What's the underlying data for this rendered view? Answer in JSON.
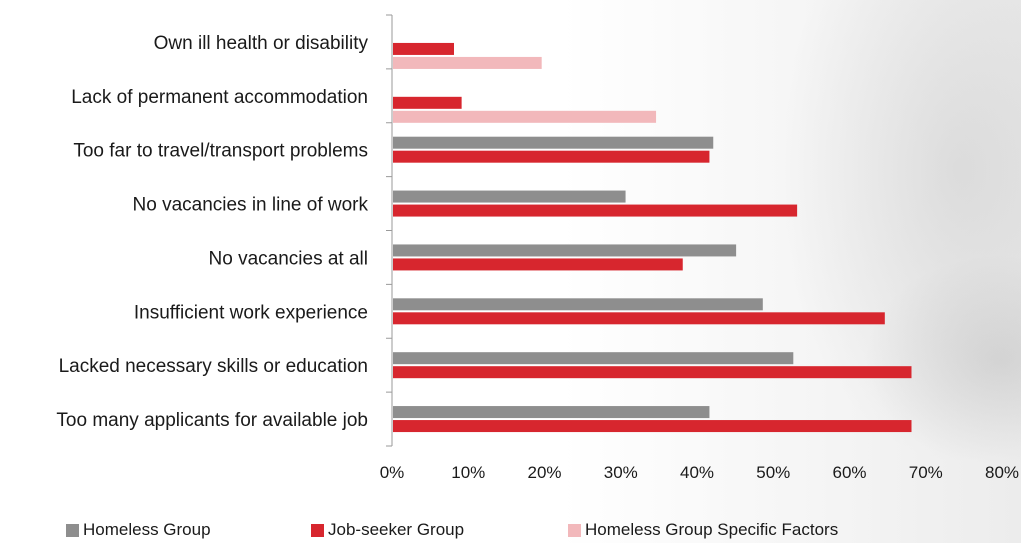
{
  "chart_data": {
    "type": "bar",
    "orientation": "horizontal",
    "categories": [
      "Own ill health or disability",
      "Lack of permanent accommodation",
      "Too far to travel/transport problems",
      "No vacancies in line of work",
      "No vacancies at all",
      "Insufficient work experience",
      "Lacked necessary skills or education",
      "Too many applicants for available job"
    ],
    "series": [
      {
        "name": "Homeless Group",
        "color": "#8e8e8e",
        "values": [
          null,
          null,
          42,
          30.5,
          45,
          48.5,
          52.5,
          41.5
        ]
      },
      {
        "name": "Job-seeker Group",
        "color": "#d7262e",
        "values": [
          8,
          9,
          41.5,
          53,
          38,
          64.5,
          68,
          68
        ]
      },
      {
        "name": "Homeless Group Specific Factors",
        "color": "#f2b8bb",
        "values": [
          19.5,
          34.5,
          null,
          null,
          null,
          null,
          null,
          null
        ]
      }
    ],
    "xlim": [
      0,
      80
    ],
    "ticks": [
      "0%",
      "10%",
      "20%",
      "30%",
      "40%",
      "50%",
      "60%",
      "70%",
      "80%"
    ],
    "title": "",
    "xlabel": "",
    "ylabel": "",
    "legend_position": "bottom",
    "grid": false
  },
  "legend": [
    {
      "label": "Homeless Group",
      "color": "#8e8e8e"
    },
    {
      "label": "Job-seeker Group",
      "color": "#d7262e"
    },
    {
      "label": "Homeless Group Specific Factors",
      "color": "#f2b8bb"
    }
  ]
}
